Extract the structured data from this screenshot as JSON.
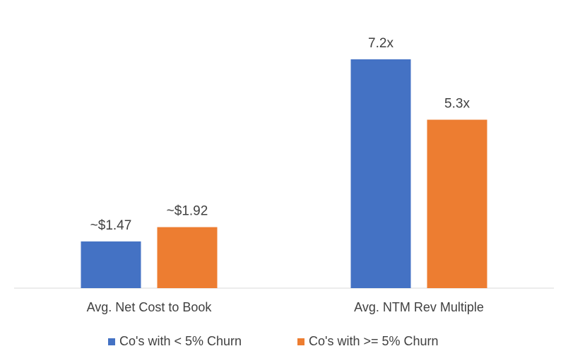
{
  "chart_data": {
    "type": "bar",
    "categories": [
      "Avg. Net Cost to Book",
      "Avg. NTM Rev Multiple"
    ],
    "series": [
      {
        "name": "Co's with < 5% Churn",
        "color": "#4472c4",
        "values": [
          1.47,
          7.2
        ],
        "value_labels": [
          "~$1.47",
          "7.2x"
        ]
      },
      {
        "name": "Co's with >= 5% Churn",
        "color": "#ed7d31",
        "values": [
          1.92,
          5.3
        ],
        "value_labels": [
          "~$1.92",
          "5.3x"
        ]
      }
    ],
    "legend": "bottom"
  }
}
